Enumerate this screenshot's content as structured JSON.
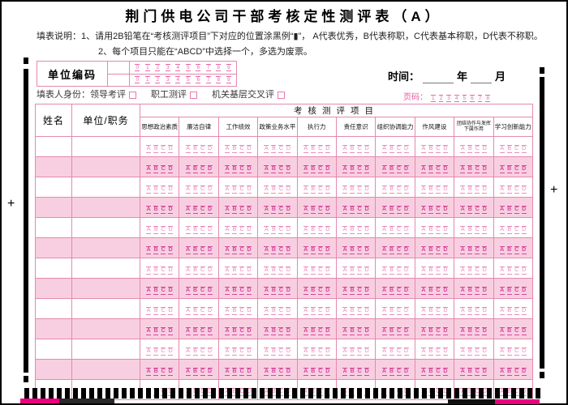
{
  "title": "荆门供电公司干部考核定性测评表（A）",
  "instructions": {
    "line1": "填表说明：1、请用2B铅笔在“考核测评项目”下对应的位置涂黑例“▮”，  A代表优秀，B代表称职，C代表基本称职，D代表不称职。",
    "line2": "2、每个项目只能在“ABCD”中选择一个，多选为废票。"
  },
  "unit_code": {
    "label": "单位编码",
    "digit_rows": [
      [
        "0",
        "1",
        "2",
        "3",
        "4",
        "5",
        "6",
        "7",
        "8",
        "9"
      ],
      [
        "0",
        "1",
        "2",
        "3",
        "4",
        "5",
        "6",
        "7",
        "8",
        "9"
      ]
    ]
  },
  "identity": {
    "label": "填表人身份：",
    "options": [
      "领导考评",
      "职工测评",
      "机关基层交叉评"
    ]
  },
  "time": {
    "label": "时间：",
    "year_suffix": "年",
    "month_suffix": "月"
  },
  "page": {
    "label": "页码：",
    "numbers": [
      "1",
      "2",
      "3",
      "4",
      "5",
      "6",
      "7",
      "8"
    ]
  },
  "table": {
    "name_header": "姓名",
    "unit_header": "单位/职务",
    "group_header": "考核测评项目",
    "columns": [
      "思想政治素质",
      "廉洁自律",
      "工作绩效",
      "政策业务水平",
      "执行力",
      "责任意识",
      "组织协调能力",
      "作风建设",
      "团结协作与发挥下属作用",
      "学习创新能力"
    ],
    "options": [
      "A",
      "B",
      "C",
      "D"
    ],
    "data_row_count": 13
  },
  "colors": {
    "border_pink": "#e589ae",
    "row_pink": "#f8cfe1",
    "bubble_pink": "#d4479b",
    "magenta_strip": "#ed0080",
    "mark_black": "#000000"
  }
}
